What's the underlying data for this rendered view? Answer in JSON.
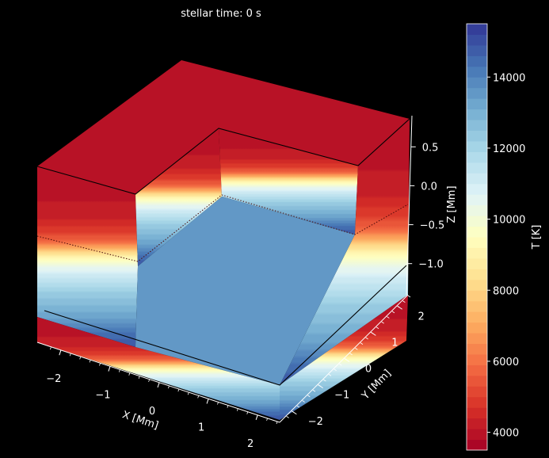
{
  "title": "stellar time: 0 s",
  "chart_data": {
    "type": "3d-cutaway-volume",
    "variable": "temperature",
    "axes": {
      "x": {
        "label": "X [Mm]",
        "ticks": [
          -2,
          -1,
          0,
          1,
          2
        ],
        "tick_labels": [
          "−2",
          "−1",
          "0",
          "1",
          "2"
        ],
        "range": [
          -2.4,
          2.4
        ]
      },
      "y": {
        "label": "Y [Mm]",
        "ticks": [
          -2,
          -1,
          0,
          1,
          2
        ],
        "tick_labels": [
          "−2",
          "−1",
          "0",
          "1",
          "2"
        ],
        "range": [
          -2.4,
          2.4
        ]
      },
      "z": {
        "label": "Z [Mm]",
        "ticks": [
          0.5,
          0.0,
          -0.5,
          -1.0
        ],
        "tick_labels": [
          "0.5",
          "0.0",
          "−0.5",
          "−1.0"
        ],
        "range": [
          -1.4,
          0.9
        ]
      }
    },
    "colorbar": {
      "label": "T [K]",
      "colormap": "RdYlBu",
      "range": [
        3500,
        15500
      ],
      "ticks": [
        4000,
        6000,
        8000,
        10000,
        12000,
        14000
      ],
      "tick_labels": [
        "4000",
        "6000",
        "8000",
        "10000",
        "12000",
        "14000"
      ],
      "levels": 40
    },
    "profile_vs_z": [
      {
        "z": 0.9,
        "T": 3900
      },
      {
        "z": 0.55,
        "T": 4000
      },
      {
        "z": 0.25,
        "T": 4300
      },
      {
        "z": 0.05,
        "T": 5000
      },
      {
        "z": -0.05,
        "T": 5800
      },
      {
        "z": -0.12,
        "T": 6800
      },
      {
        "z": -0.18,
        "T": 7800
      },
      {
        "z": -0.24,
        "T": 8800
      },
      {
        "z": -0.3,
        "T": 9700
      },
      {
        "z": -0.4,
        "T": 10500
      },
      {
        "z": -0.55,
        "T": 11500
      },
      {
        "z": -0.75,
        "T": 12400
      },
      {
        "z": -1.0,
        "T": 13200
      },
      {
        "z": -1.2,
        "T": 14200
      },
      {
        "z": -1.4,
        "T": 15000
      }
    ],
    "cutaway_floor_T": 13500,
    "annotations": [
      "top outline",
      "dotted contour near optical surface",
      "bottom outline"
    ],
    "grid": false,
    "background": "#000000"
  }
}
